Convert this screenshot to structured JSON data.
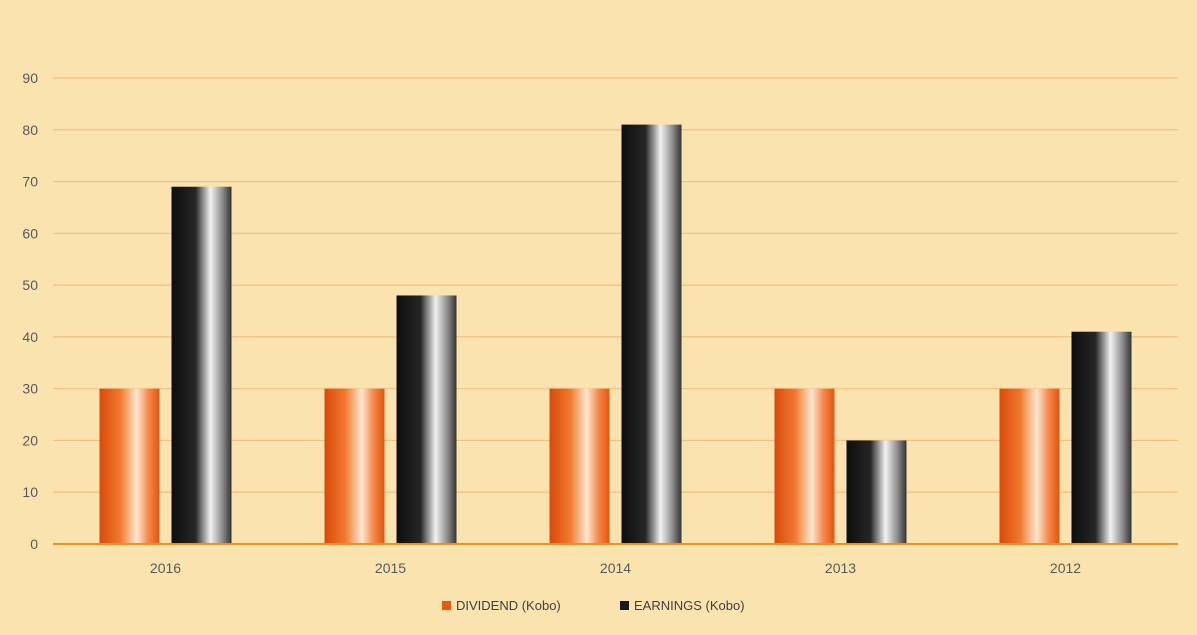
{
  "chart_data": {
    "type": "bar",
    "categories": [
      "2016",
      "2015",
      "2014",
      "2013",
      "2012"
    ],
    "series": [
      {
        "name": "DIVIDEND (Kobo)",
        "values": [
          30,
          30,
          30,
          30,
          30
        ]
      },
      {
        "name": "EARNINGS (Kobo)",
        "values": [
          69,
          48,
          81,
          20,
          41
        ]
      }
    ],
    "ylim": [
      0,
      90
    ],
    "yticks": [
      0,
      10,
      20,
      30,
      40,
      50,
      60,
      70,
      80,
      90
    ],
    "grid": true,
    "legend_position": "bottom",
    "colors": {
      "background": "#fbe3b0",
      "grid": "#f0c080",
      "axis": "#e8902a",
      "dividend": "#e85a10",
      "earnings": "#1a1a1a"
    }
  }
}
